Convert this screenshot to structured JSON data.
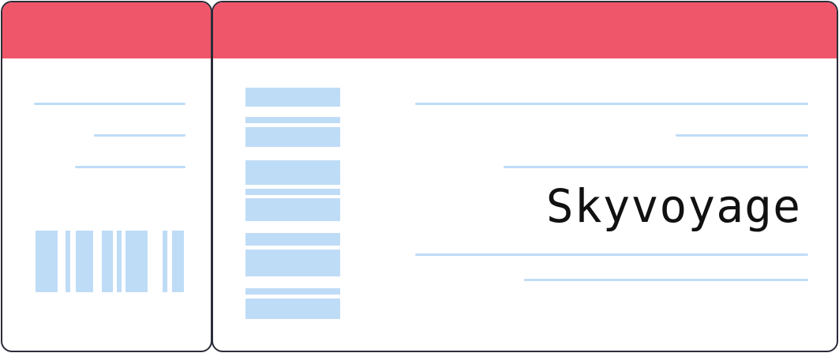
{
  "ticket": {
    "brand_name": "Skyvoyage",
    "header_color": "#f0566a",
    "line_color": "#bfdcf7",
    "barcode_color": "#bfdcf7",
    "border_color": "#2b2d3a"
  }
}
